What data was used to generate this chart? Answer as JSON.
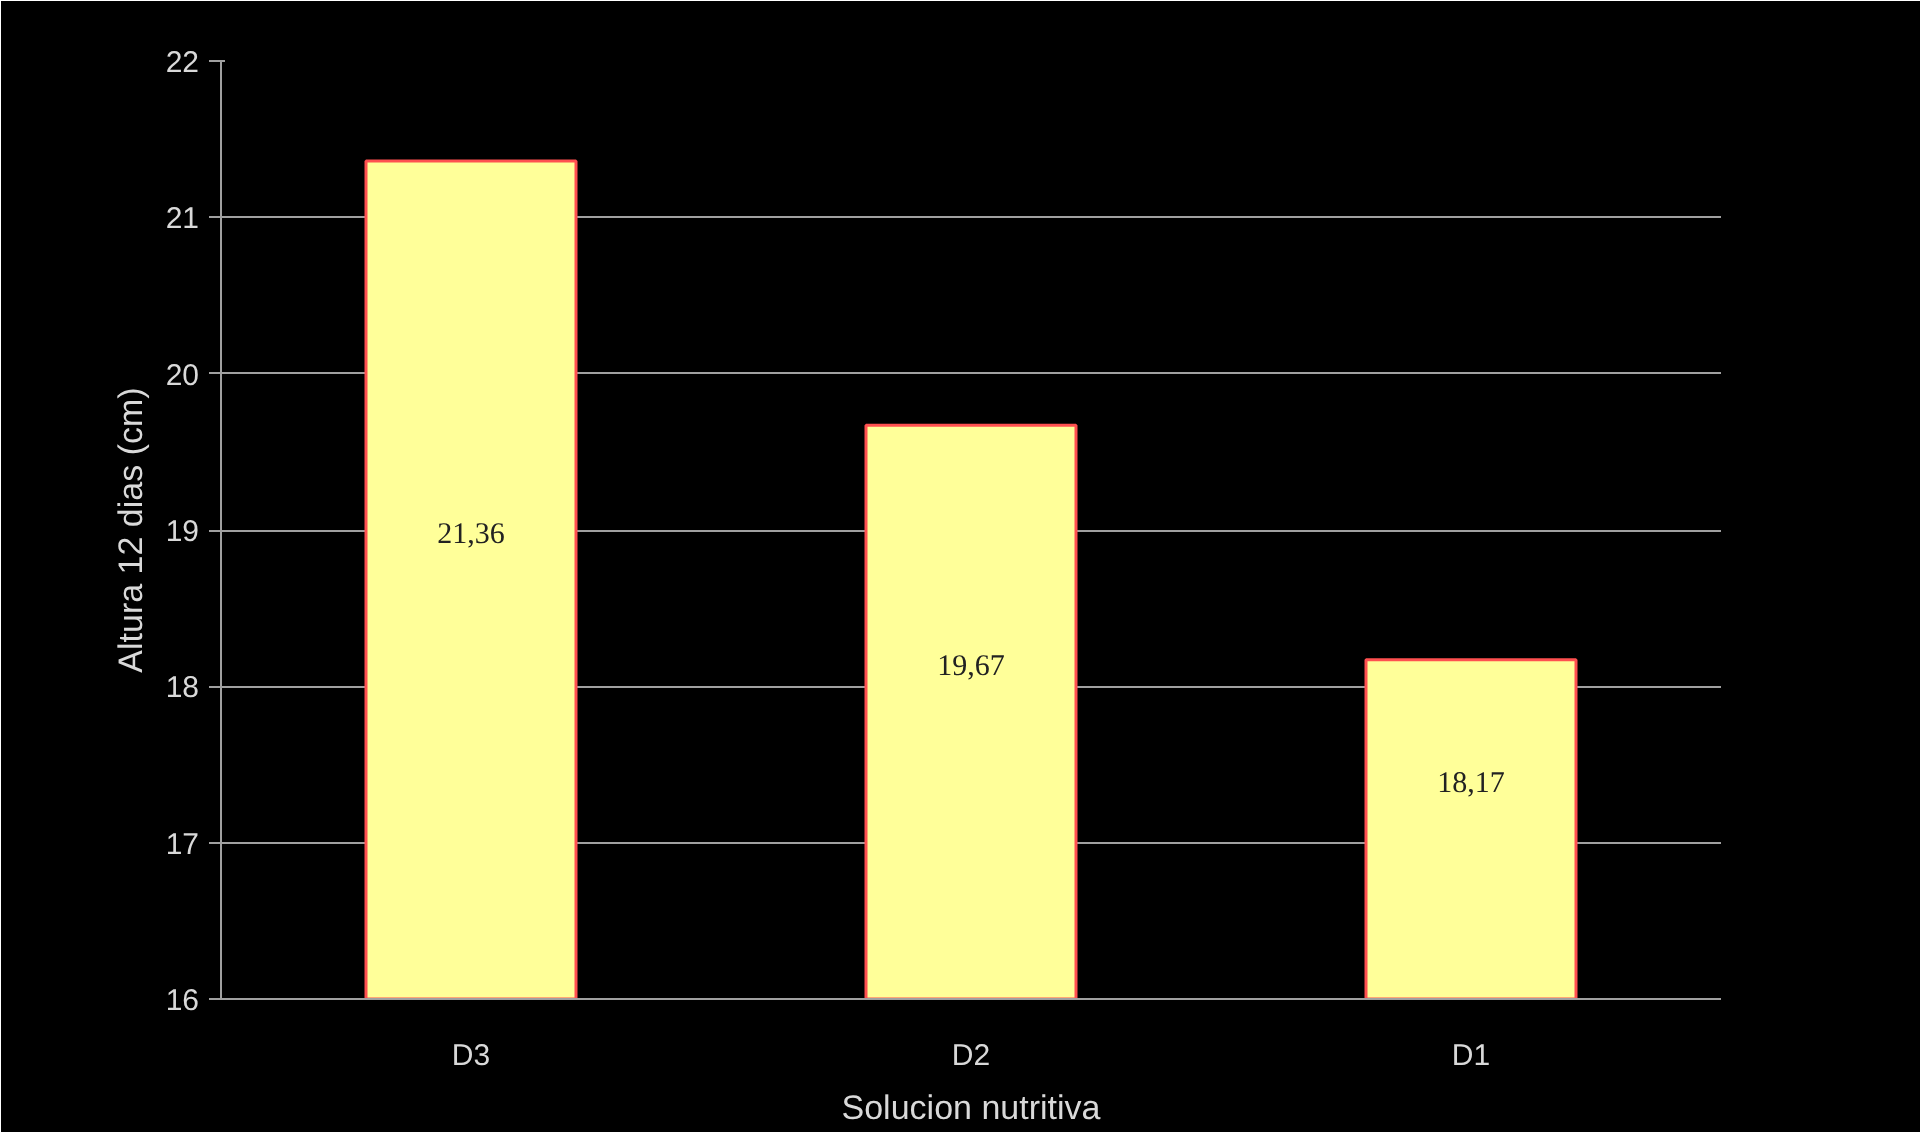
{
  "chart_data": {
    "type": "bar",
    "xlabel": "Solucion nutritiva",
    "ylabel": "Altura 12 dias (cm)",
    "categories": [
      "D3",
      "D2",
      "D1"
    ],
    "values": [
      21.36,
      19.67,
      18.17
    ],
    "value_labels": [
      "21,36",
      "19,67",
      "18,17"
    ],
    "color": "#ffff99",
    "ylim": [
      16,
      22
    ],
    "yticks": [
      16,
      17,
      18,
      19,
      20,
      21,
      22
    ],
    "grid": "y"
  }
}
